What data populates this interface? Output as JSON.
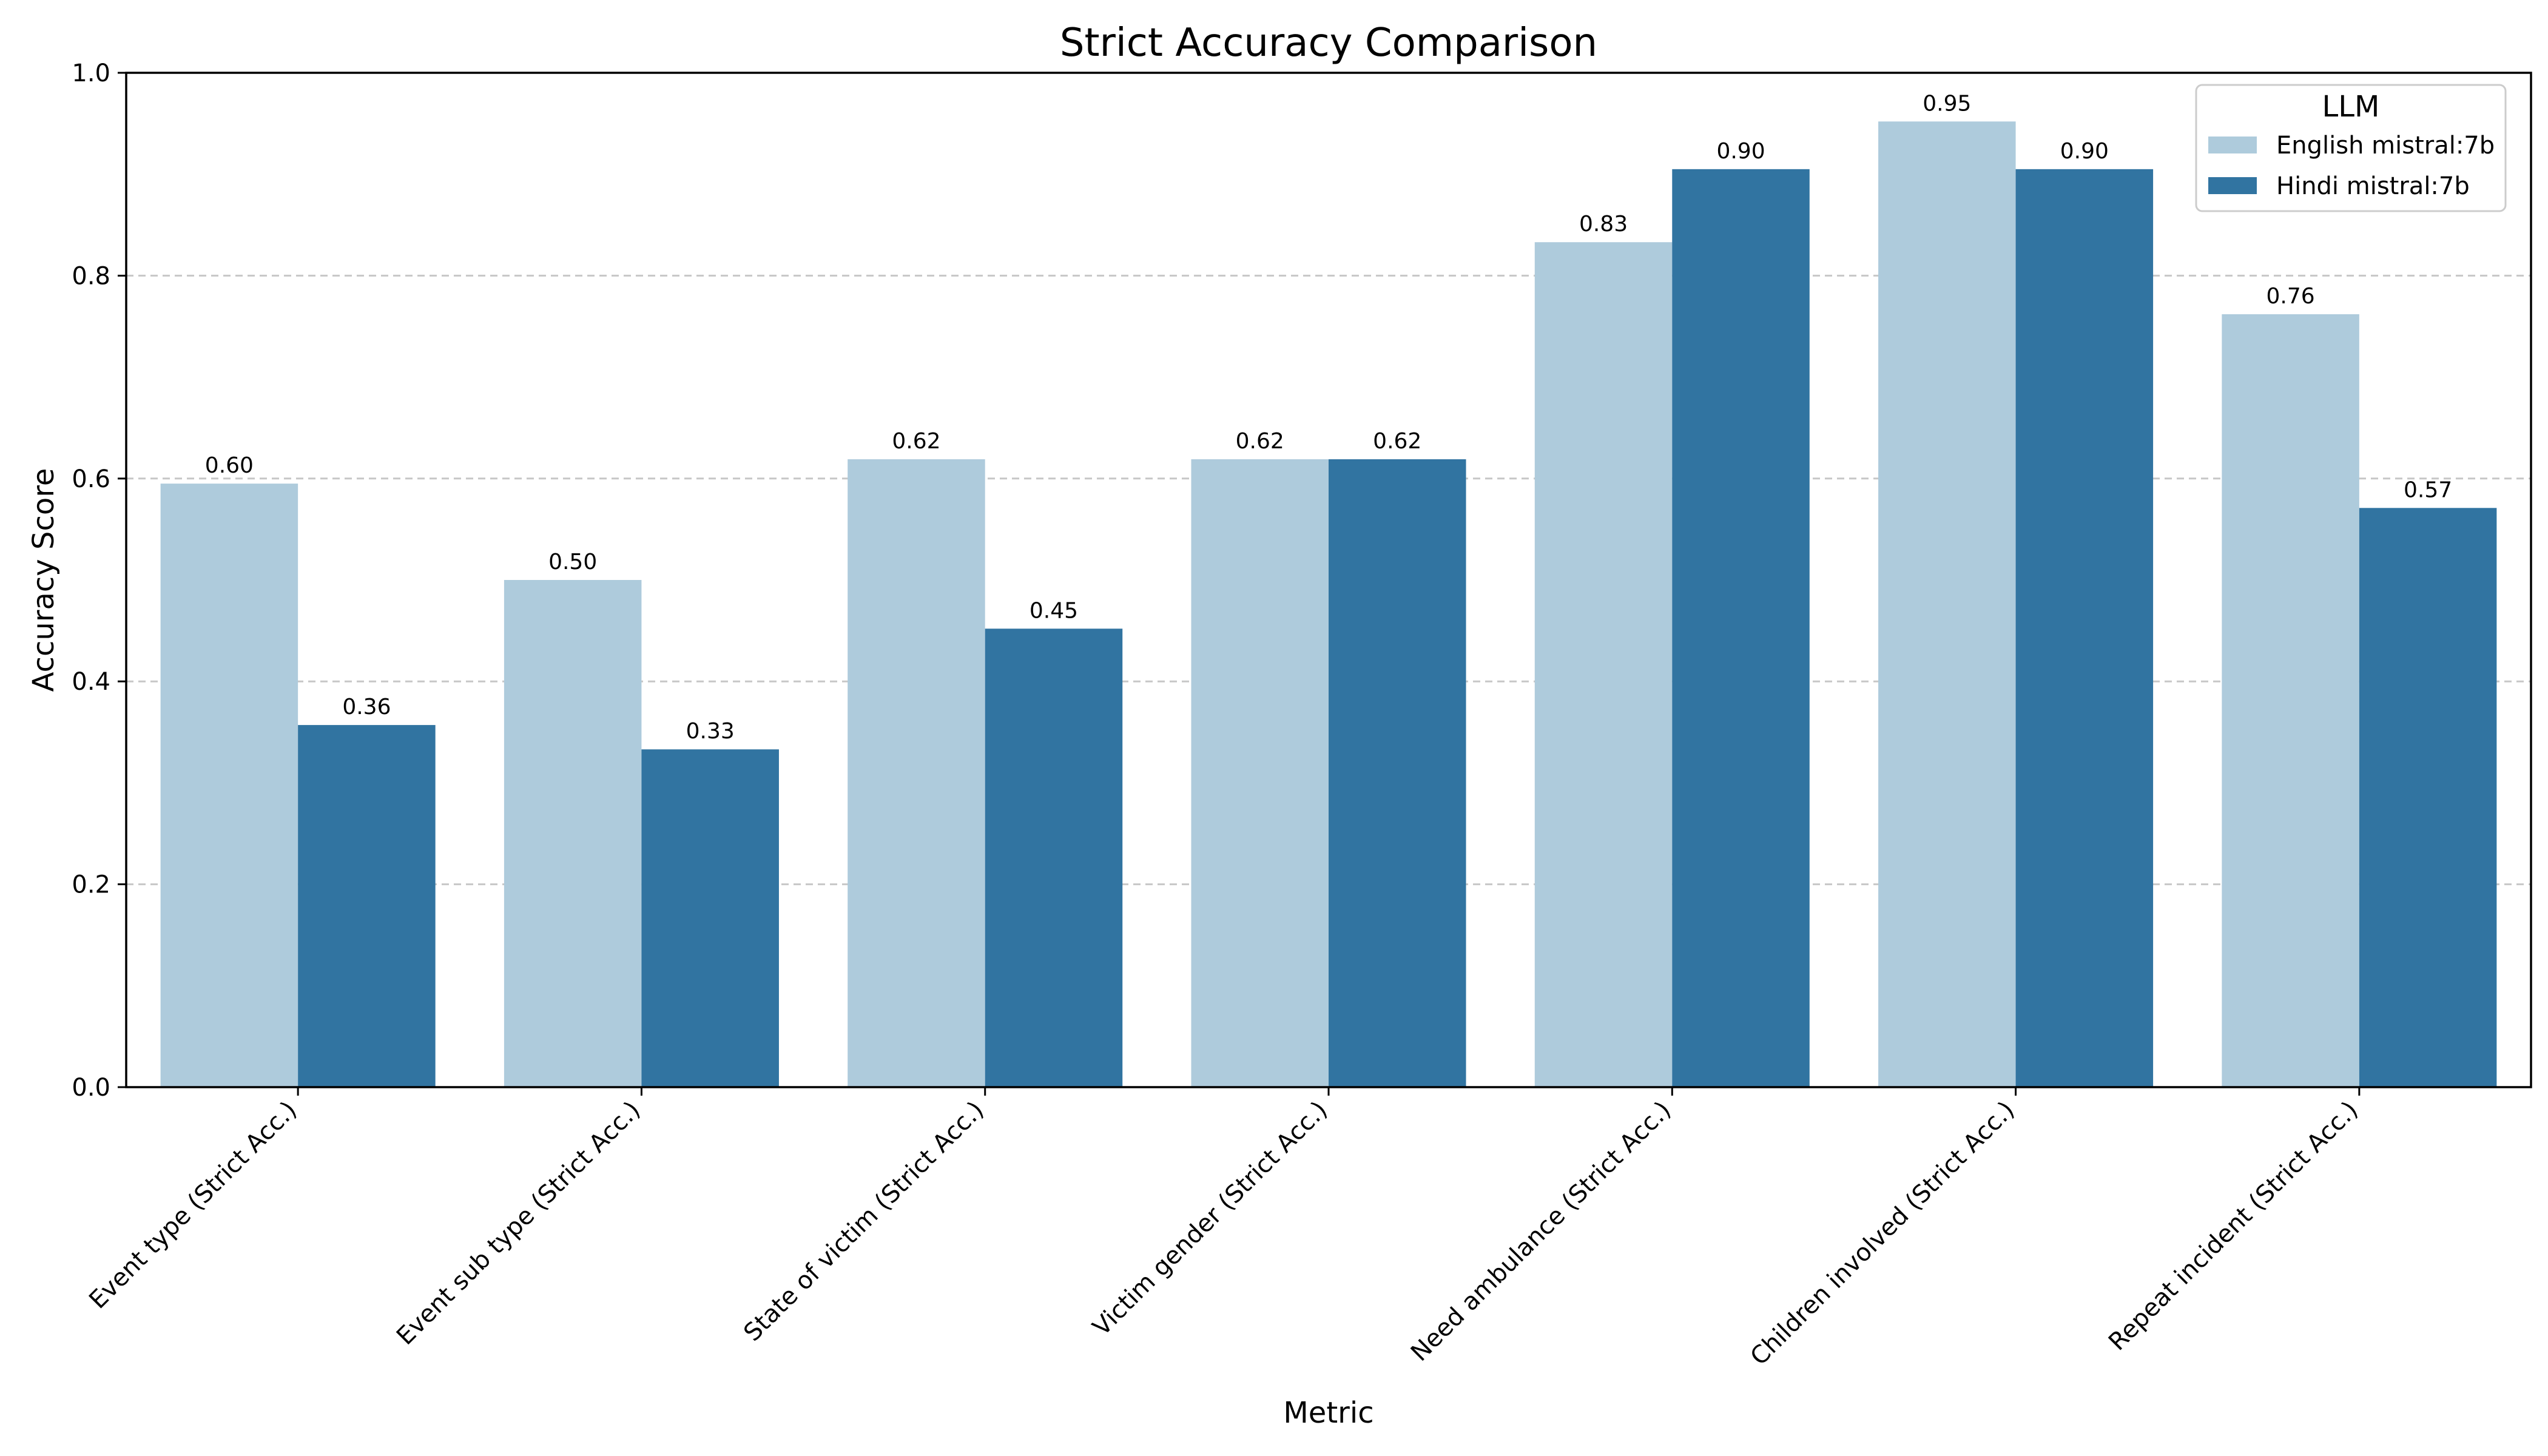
{
  "chart_data": {
    "type": "bar",
    "title": "Strict Accuracy Comparison",
    "xlabel": "Metric",
    "ylabel": "Accuracy Score",
    "ylim": [
      0,
      1.0
    ],
    "yticks": [
      "0.0",
      "0.2",
      "0.4",
      "0.6",
      "0.8",
      "1.0"
    ],
    "grid": "y-dashed",
    "legend": {
      "title": "LLM",
      "placement": "top-right"
    },
    "categories": [
      "Event type (Strict Acc.)",
      "Event sub type (Strict Acc.)",
      "State of victim (Strict Acc.)",
      "Victim gender (Strict Acc.)",
      "Need ambulance (Strict Acc.)",
      "Children involved (Strict Acc.)",
      "Repeat incident (Strict Acc.)"
    ],
    "series": [
      {
        "name": "English mistral:7b",
        "color": "#aecbdc",
        "values": [
          0.595,
          0.5,
          0.619,
          0.619,
          0.833,
          0.952,
          0.762
        ],
        "labels": [
          "0.60",
          "0.50",
          "0.62",
          "0.62",
          "0.83",
          "0.95",
          "0.76"
        ]
      },
      {
        "name": "Hindi mistral:7b",
        "color": "#3174a1",
        "values": [
          0.357,
          0.333,
          0.452,
          0.619,
          0.905,
          0.905,
          0.571
        ],
        "labels": [
          "0.36",
          "0.33",
          "0.45",
          "0.62",
          "0.90",
          "0.90",
          "0.57"
        ]
      }
    ]
  }
}
